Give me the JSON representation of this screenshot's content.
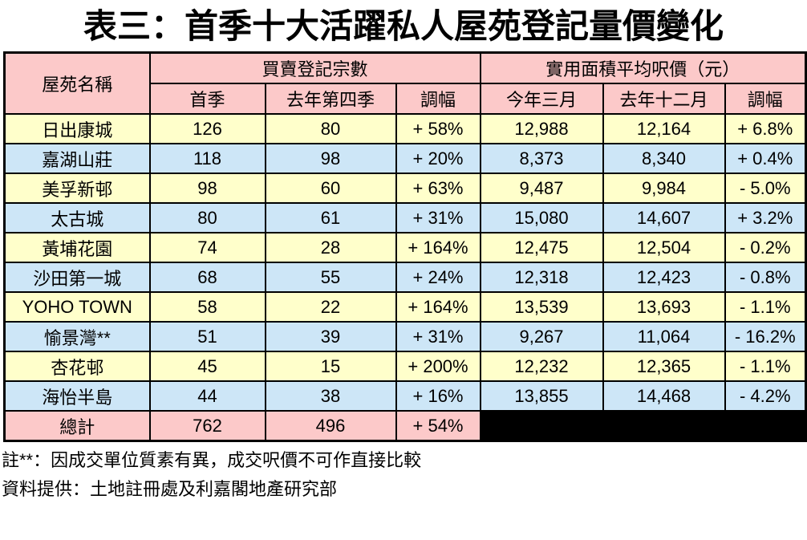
{
  "title": "表三：首季十大活躍私人屋苑登記量價變化",
  "table": {
    "headers": {
      "estate_name": "屋苑名稱",
      "group_volume": "買賣登記宗數",
      "group_price": "實用面積平均呎價（元）",
      "sub_q1": "首季",
      "sub_q4": "去年第四季",
      "sub_change_volume": "調幅",
      "sub_march": "今年三月",
      "sub_december": "去年十二月",
      "sub_change_price": "調幅"
    },
    "rows": [
      [
        "日出康城",
        "126",
        "80",
        "+ 58%",
        "12,988",
        "12,164",
        "+ 6.8%"
      ],
      [
        "嘉湖山莊",
        "118",
        "98",
        "+ 20%",
        "8,373",
        "8,340",
        "+ 0.4%"
      ],
      [
        "美孚新邨",
        "98",
        "60",
        "+ 63%",
        "9,487",
        "9,984",
        "- 5.0%"
      ],
      [
        "太古城",
        "80",
        "61",
        "+ 31%",
        "15,080",
        "14,607",
        "+ 3.2%"
      ],
      [
        "黃埔花園",
        "74",
        "28",
        "+ 164%",
        "12,475",
        "12,504",
        "- 0.2%"
      ],
      [
        "沙田第一城",
        "68",
        "55",
        "+ 24%",
        "12,318",
        "12,423",
        "- 0.8%"
      ],
      [
        "YOHO TOWN",
        "58",
        "22",
        "+ 164%",
        "13,539",
        "13,693",
        "- 1.1%"
      ],
      [
        "愉景灣**",
        "51",
        "39",
        "+ 31%",
        "9,267",
        "11,064",
        "- 16.2%"
      ],
      [
        "杏花邨",
        "45",
        "15",
        "+ 200%",
        "12,232",
        "12,365",
        "- 1.1%"
      ],
      [
        "海怡半島",
        "44",
        "38",
        "+ 16%",
        "13,855",
        "14,468",
        "- 4.2%"
      ]
    ],
    "total_row": {
      "label": "總計",
      "q1": "762",
      "q4": "496",
      "change": "+ 54%"
    }
  },
  "notes": {
    "note1": "註**：因成交單位質素有異，成交呎價不可作直接比較",
    "note2": "資料提供：土地註冊處及利嘉閣地產研究部"
  },
  "colors": {
    "header_pink": "#fcc9c9",
    "row_yellow": "#ffffcb",
    "row_blue": "#cde6f7",
    "blackout": "#000000",
    "border": "#000000"
  }
}
